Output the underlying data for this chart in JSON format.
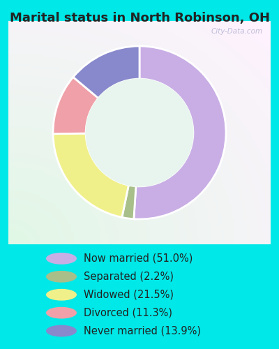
{
  "title": "Marital status in North Robinson, OH",
  "slices": [
    51.0,
    2.2,
    21.5,
    11.3,
    13.9
  ],
  "labels": [
    "Now married (51.0%)",
    "Separated (2.2%)",
    "Widowed (21.5%)",
    "Divorced (11.3%)",
    "Never married (13.9%)"
  ],
  "colors": [
    "#c9aee5",
    "#a8bf8a",
    "#f0f08a",
    "#f0a0a8",
    "#8888cc"
  ],
  "title_fontsize": 13,
  "legend_fontsize": 10.5,
  "watermark": "City-Data.com",
  "donut_width": 0.38,
  "start_angle": 90,
  "figsize": [
    4.0,
    5.0
  ],
  "dpi": 100,
  "outer_bg_color": "#00e8e8",
  "chart_border_color": "#b0e8c8",
  "title_color": "#222222"
}
